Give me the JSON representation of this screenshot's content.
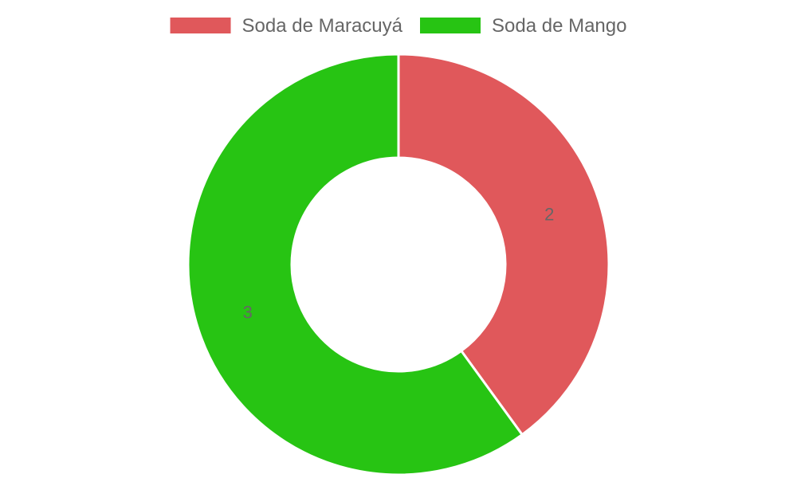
{
  "chart_data": {
    "type": "pie",
    "variant": "doughnut",
    "categories": [
      "Soda de Maracuyá",
      "Soda de Mango"
    ],
    "values": [
      2,
      3
    ],
    "colors": [
      "#e0585b",
      "#27c413"
    ],
    "data_labels": [
      "2",
      "3"
    ],
    "legend": {
      "placement": "top",
      "entries": [
        "Soda de Maracuyá",
        "Soda de Mango"
      ]
    },
    "title": ""
  }
}
